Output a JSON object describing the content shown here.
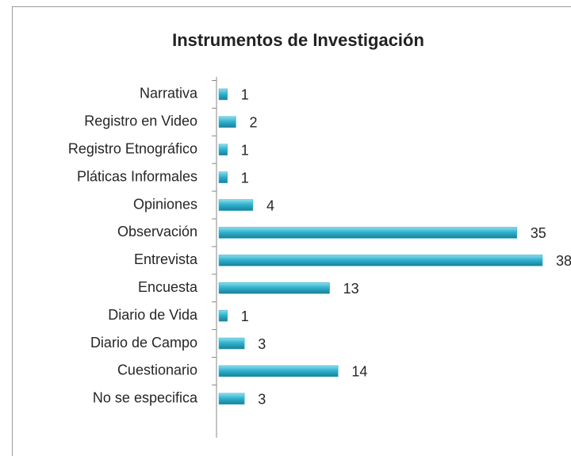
{
  "chart_data": {
    "type": "bar",
    "orientation": "horizontal",
    "title": "Instrumentos de Investigación",
    "categories": [
      "Narrativa",
      "Registro en Video",
      "Registro Etnográfico",
      "Pláticas Informales",
      "Opiniones",
      "Observación",
      "Entrevista",
      "Encuesta",
      "Diario de Vida",
      "Diario de Campo",
      "Cuestionario",
      "No se especifica"
    ],
    "values": [
      1,
      2,
      1,
      1,
      4,
      35,
      38,
      13,
      1,
      3,
      14,
      3
    ],
    "color": "#31b3cf",
    "xlim": [
      0,
      38
    ]
  }
}
